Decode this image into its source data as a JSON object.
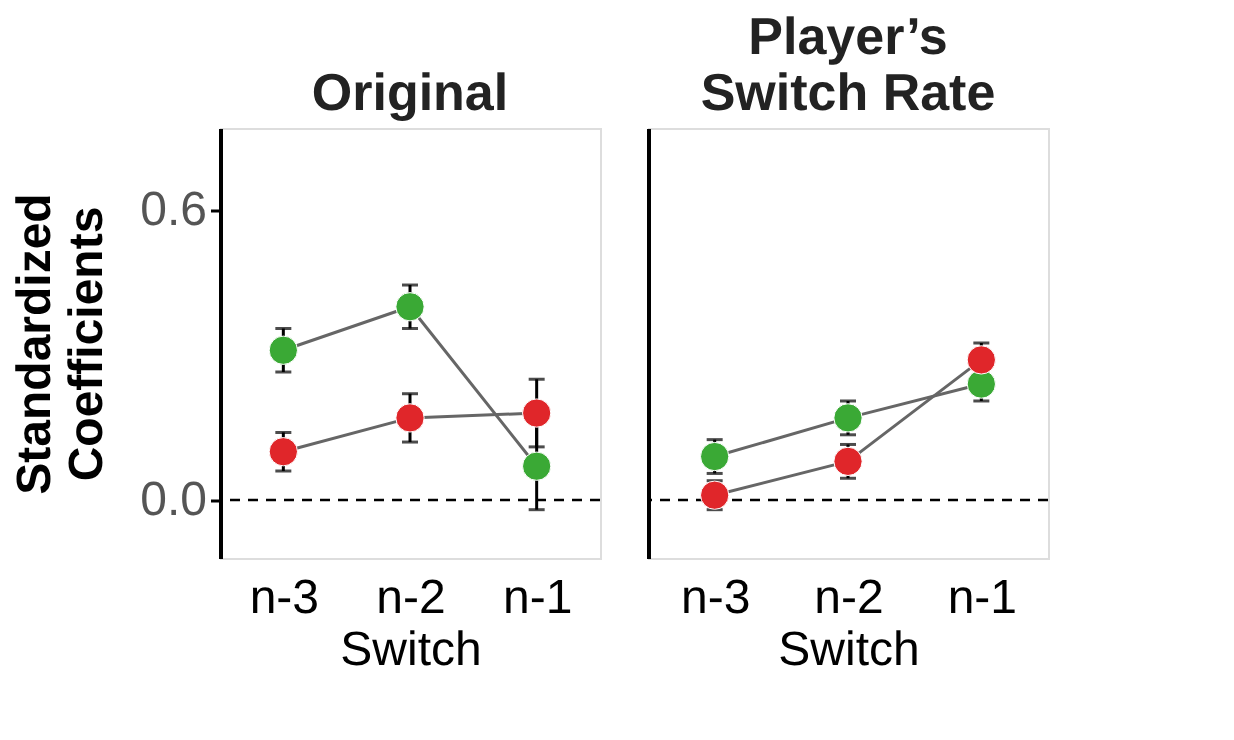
{
  "chart_data": [
    {
      "type": "line",
      "title": "Original",
      "xlabel": "Switch",
      "ylabel": "Standardized Coefficients",
      "categories": [
        "n-3",
        "n-2",
        "n-1"
      ],
      "ylim": [
        -0.12,
        0.77
      ],
      "yticks": [
        {
          "value": 0,
          "label": "0.0"
        },
        {
          "value": 0.6,
          "label": "0.6"
        }
      ],
      "marker": "circle",
      "grid": false,
      "series": [
        {
          "color": "#3aa935",
          "values": [
            0.31,
            0.4,
            0.07
          ],
          "errors": [
            0.045,
            0.045,
            0.09
          ]
        },
        {
          "color": "#e0262a",
          "values": [
            0.1,
            0.17,
            0.18
          ],
          "errors": [
            0.04,
            0.05,
            0.07
          ]
        }
      ],
      "ref_lines": [
        {
          "axis": "y",
          "value": 0,
          "line_style": "dashed",
          "color": "#000000"
        }
      ]
    },
    {
      "type": "line",
      "title": "Player’s Switch Rate",
      "xlabel": "Switch",
      "categories": [
        "n-3",
        "n-2",
        "n-1"
      ],
      "ylim": [
        -0.12,
        0.77
      ],
      "tick_labels": "x",
      "marker": "circle",
      "grid": false,
      "series": [
        {
          "color": "#3aa935",
          "values": [
            0.09,
            0.17,
            0.24
          ],
          "errors": [
            0.035,
            0.035,
            0.035
          ]
        },
        {
          "color": "#e0262a",
          "values": [
            0.01,
            0.08,
            0.29
          ],
          "errors": [
            0.03,
            0.035,
            0.035
          ]
        }
      ],
      "ref_lines": [
        {
          "axis": "y",
          "value": 0,
          "line_style": "dashed",
          "color": "#000000"
        }
      ]
    }
  ]
}
